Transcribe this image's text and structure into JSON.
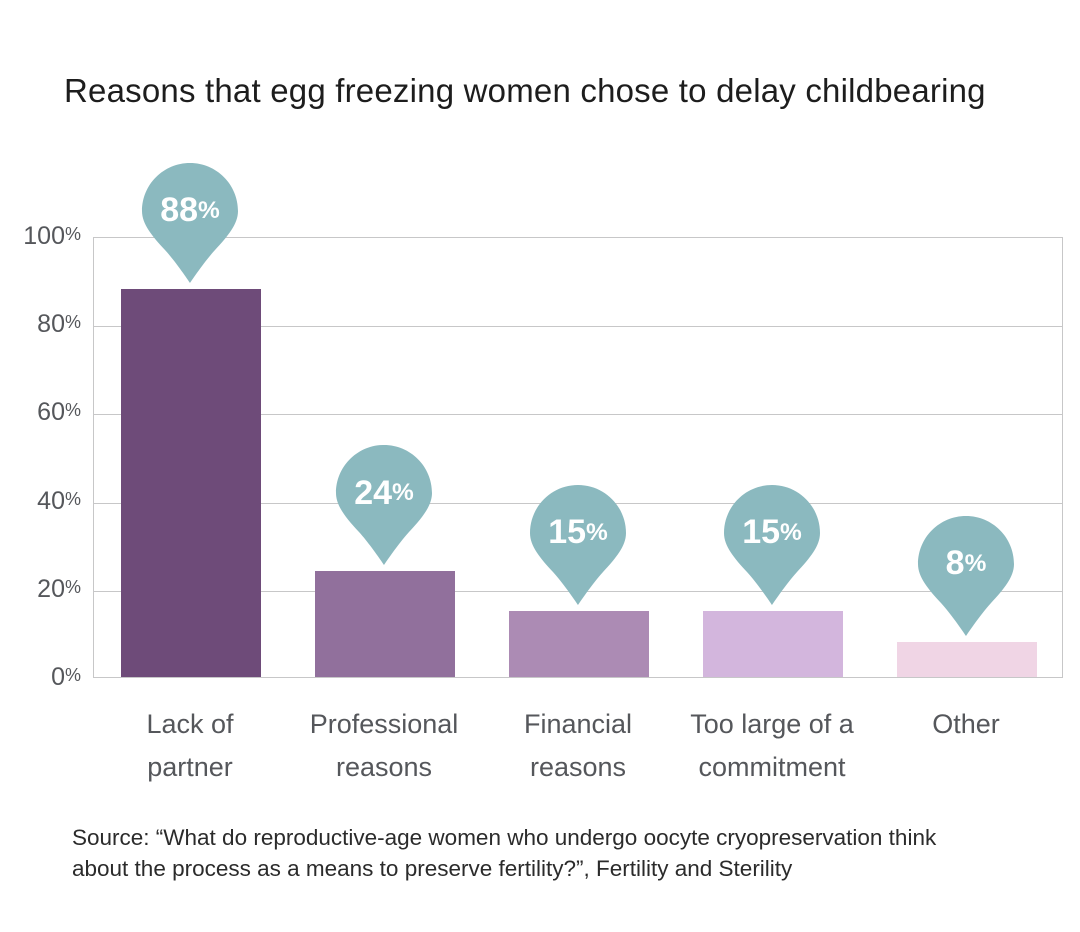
{
  "title": "Reasons that egg freezing women chose to delay childbearing",
  "source_lines": [
    "Source: “What do reproductive-age women who undergo oocyte cryopreservation think",
    "about the process as a means to preserve fertility?”, Fertility and Sterility"
  ],
  "chart_data": {
    "type": "bar",
    "title": "Reasons that egg freezing women chose to delay childbearing",
    "categories": [
      "Lack of partner",
      "Professional reasons",
      "Financial reasons",
      "Too large of a commitment",
      "Other"
    ],
    "category_lines": [
      [
        "Lack of",
        "partner"
      ],
      [
        "Professional",
        "reasons"
      ],
      [
        "Financial",
        "reasons"
      ],
      [
        "Too large of a",
        "commitment"
      ],
      [
        "Other"
      ]
    ],
    "values": [
      88,
      24,
      15,
      15,
      8
    ],
    "data_labels": [
      "88%",
      "24%",
      "15%",
      "15%",
      "8%"
    ],
    "unit": "%",
    "xlabel": "",
    "ylabel": "",
    "ylim": [
      0,
      100
    ],
    "yticks": [
      0,
      20,
      40,
      60,
      80,
      100
    ],
    "ytick_labels": [
      "0%",
      "20%",
      "40%",
      "60%",
      "80%",
      "100%"
    ],
    "grid": true,
    "legend": false,
    "data_label_style": "teardrop-callout-pin-above-each-bar",
    "colors": {
      "bars": [
        "#6e4b79",
        "#91709c",
        "#ac8bb4",
        "#d3b6dd",
        "#f0d5e5"
      ],
      "callout": "#8bb9bf",
      "callout_text": "#ffffff",
      "gridline": "#c7c7c8",
      "axis_text": "#55575b",
      "title_text": "#1d1d1d",
      "source_text": "#2b2b2b",
      "background": "#ffffff"
    }
  }
}
